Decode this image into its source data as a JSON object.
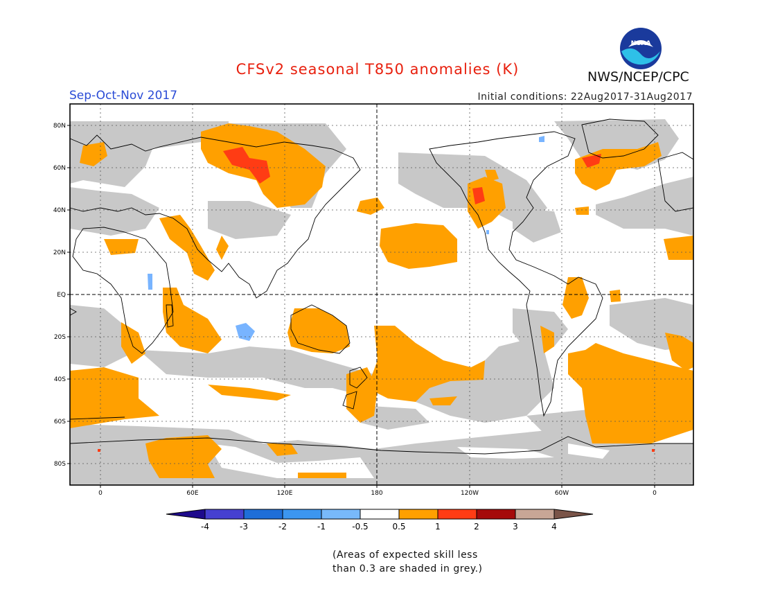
{
  "header": {
    "title": "CFSv2 seasonal T850 anomalies (K)",
    "agency": "NWS/NCEP/CPC",
    "logo_text": "NOAA",
    "season": "Sep-Oct-Nov 2017",
    "initial_conditions": "Initial conditions: 22Aug2017-31Aug2017"
  },
  "map": {
    "lat_ticks": [
      "80N",
      "60N",
      "40N",
      "20N",
      "EQ",
      "20S",
      "40S",
      "60S",
      "80S"
    ],
    "lon_ticks": [
      "0",
      "60E",
      "120E",
      "180",
      "120W",
      "60W",
      "0"
    ],
    "colors": {
      "grey": "#c8c8c8",
      "orange": "#ffa000",
      "red": "#ff3c14",
      "blue": "#78b4ff"
    }
  },
  "colorbar": {
    "colors": [
      "#1e0a8c",
      "#4640d0",
      "#1e6ed8",
      "#3c96f0",
      "#78b9fa",
      "#ffffff",
      "#ffa000",
      "#ff3c14",
      "#a50a0a",
      "#c8a696",
      "#7a5448"
    ],
    "labels": [
      "-4",
      "-3",
      "-2",
      "-1",
      "-0.5",
      "0.5",
      "1",
      "2",
      "3",
      "4"
    ]
  },
  "footnote": {
    "line1": "(Areas of expected skill less",
    "line2": "than 0.3 are shaded in grey.)"
  }
}
